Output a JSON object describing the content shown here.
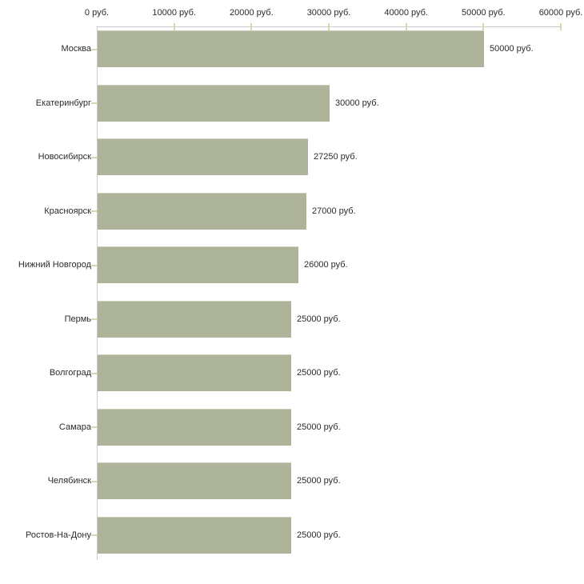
{
  "chart_data": {
    "type": "bar",
    "orientation": "horizontal",
    "title": "",
    "categories": [
      "Москва",
      "Екатеринбург",
      "Новосибирск",
      "Красноярск",
      "Нижний Новгород",
      "Пермь",
      "Волгоград",
      "Самара",
      "Челябинск",
      "Ростов-На-Дону"
    ],
    "values": [
      50000,
      30000,
      27250,
      27000,
      26000,
      25000,
      25000,
      25000,
      25000,
      25000
    ],
    "value_labels": [
      "50000 руб.",
      "30000 руб.",
      "27250 руб.",
      "27000 руб.",
      "26000 руб.",
      "25000 руб.",
      "25000 руб.",
      "25000 руб.",
      "25000 руб.",
      "25000 руб."
    ],
    "x_tick_labels": [
      "0 руб.",
      "10000 руб.",
      "20000 руб.",
      "30000 руб.",
      "40000 руб.",
      "50000 руб.",
      "60000 руб."
    ],
    "xlim": [
      0,
      60000
    ],
    "x_tick_step": 10000,
    "grid": "off",
    "legend_position": "none",
    "colors": {
      "bar_fill": "#adb49a",
      "bar_highlight": "#c9cfba",
      "axis_line": "#c9c9c9",
      "tick_mark": "#d6d7ab",
      "text": "#2b2b2b",
      "background": "#ffffff"
    }
  }
}
